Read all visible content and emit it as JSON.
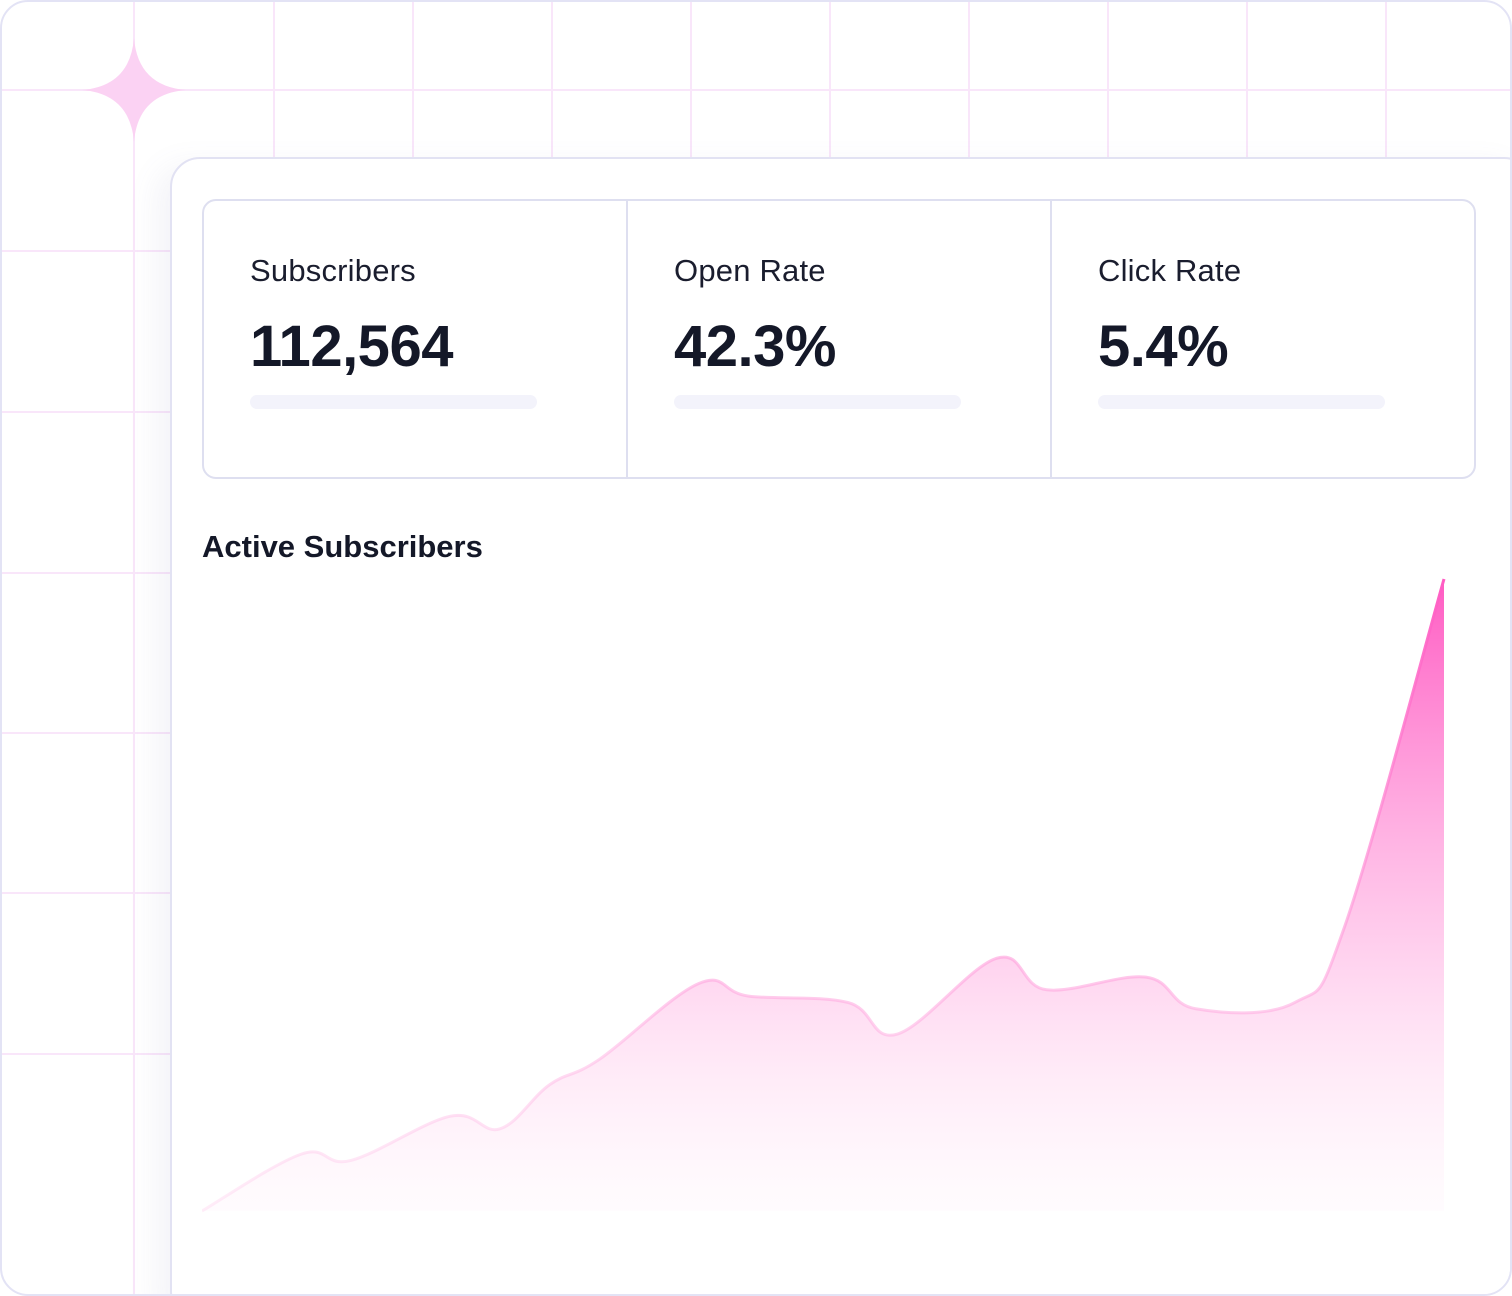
{
  "stats": [
    {
      "label": "Subscribers",
      "value": "112,564"
    },
    {
      "label": "Open Rate",
      "value": "42.3%"
    },
    {
      "label": "Click Rate",
      "value": "5.4%"
    }
  ],
  "chart_data": {
    "type": "area",
    "title": "Active Subscribers",
    "xlabel": "",
    "ylabel": "",
    "grid": false,
    "legend": "none",
    "color": "#ff5cc3",
    "x": [
      0,
      2,
      3,
      5,
      6,
      7,
      8,
      10,
      11,
      13,
      14,
      16,
      17,
      19,
      20,
      22,
      23,
      25
    ],
    "values": [
      0,
      9,
      8,
      15,
      13,
      20,
      24,
      36,
      34,
      33,
      28,
      40,
      35,
      37,
      32,
      33,
      45,
      100
    ],
    "ylim": [
      0,
      100
    ]
  }
}
